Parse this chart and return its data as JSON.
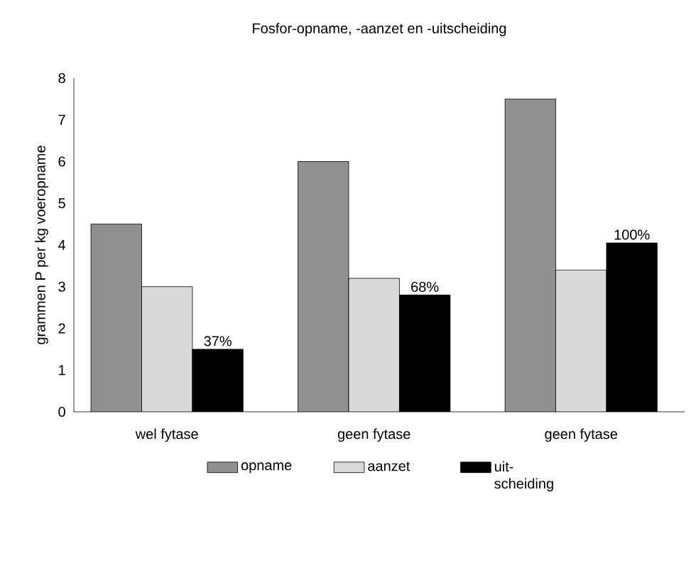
{
  "chart_data": {
    "type": "bar",
    "title": "Fosfor-opname, -aanzet en -uitscheiding",
    "ylabel": "grammen P per kg voeropname",
    "categories": [
      "wel fytase",
      "geen fytase",
      "geen fytase"
    ],
    "series": [
      {
        "name": "opname",
        "color": "#909090",
        "values": [
          4.5,
          6.0,
          7.5
        ]
      },
      {
        "name": "aanzet",
        "color": "#d9d9d9",
        "values": [
          3.0,
          3.2,
          3.4
        ]
      },
      {
        "name": "uit-scheiding",
        "color": "#000000",
        "values": [
          1.5,
          2.8,
          4.05
        ]
      }
    ],
    "annotations": [
      "37%",
      "68%",
      "100%"
    ],
    "ylim": [
      0,
      8
    ],
    "yticks": [
      0,
      1,
      2,
      3,
      4,
      5,
      6,
      7,
      8
    ],
    "legend": "bottom"
  }
}
